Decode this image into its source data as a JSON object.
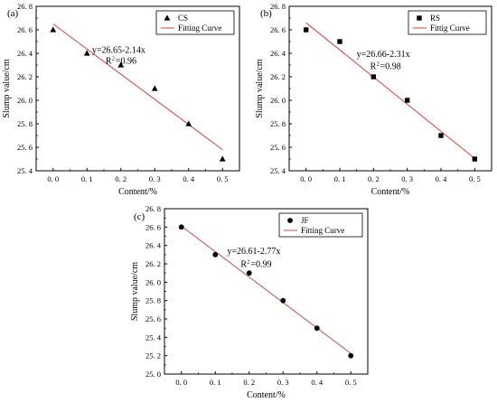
{
  "chart_data": [
    {
      "panel": "(a)",
      "type": "scatter",
      "xlabel": "Content/%",
      "ylabel": "Slump value/cm",
      "xlim": [
        -0.05,
        0.55
      ],
      "ylim": [
        25.4,
        26.8
      ],
      "xticks": [
        "0. 0",
        "0. 1",
        "0. 2",
        "0. 3",
        "0. 4",
        "0. 5"
      ],
      "yticks": [
        "25. 4",
        "25. 6",
        "25. 8",
        "26. 0",
        "26. 2",
        "26. 4",
        "26. 6",
        "26. 8"
      ],
      "marker": "triangle",
      "series": [
        {
          "name": "CS",
          "x": [
            0,
            0.1,
            0.2,
            0.3,
            0.4,
            0.5
          ],
          "y": [
            26.6,
            26.4,
            26.3,
            26.1,
            25.8,
            25.5
          ]
        }
      ],
      "fit": {
        "name": "Fitting Curve",
        "intercept": 26.65,
        "slope": -2.14,
        "color": "#e03c3c"
      },
      "annotation": {
        "equation": "y=26.65-2.14x",
        "r2_prefix": "R",
        "r2_sup": "2",
        "r2_value": "=0.96"
      }
    },
    {
      "panel": "(b)",
      "type": "scatter",
      "xlabel": "Content/%",
      "ylabel": "Slump value/cm",
      "xlim": [
        -0.05,
        0.55
      ],
      "ylim": [
        25.4,
        26.8
      ],
      "xticks": [
        "0. 0",
        "0. 1",
        "0. 2",
        "0. 3",
        "0. 4",
        "0. 5"
      ],
      "yticks": [
        "25. 4",
        "25. 6",
        "25. 8",
        "26. 0",
        "26. 2",
        "26. 4",
        "26. 6",
        "26. 8"
      ],
      "marker": "square",
      "series": [
        {
          "name": "RS",
          "x": [
            0,
            0.1,
            0.2,
            0.3,
            0.4,
            0.5
          ],
          "y": [
            26.6,
            26.5,
            26.2,
            26.0,
            25.7,
            25.5
          ]
        }
      ],
      "fit": {
        "name": "Fittig Curve",
        "intercept": 26.66,
        "slope": -2.31,
        "color": "#e03c3c"
      },
      "annotation": {
        "equation": "y=26.66-2.31x",
        "r2_prefix": "R",
        "r2_sup": "2",
        "r2_value": "=0.98"
      }
    },
    {
      "panel": "(c)",
      "type": "scatter",
      "xlabel": "Content/%",
      "ylabel": "Slump value/cm",
      "xlim": [
        -0.05,
        0.55
      ],
      "ylim": [
        25.0,
        26.8
      ],
      "xticks": [
        "0. 0",
        "0. 1",
        "0. 2",
        "0. 3",
        "0. 4",
        "0. 5"
      ],
      "yticks": [
        "25. 0",
        "25. 2",
        "25. 4",
        "25. 6",
        "25. 8",
        "26. 0",
        "26. 2",
        "26. 4",
        "26. 6",
        "26. 8"
      ],
      "marker": "circle",
      "series": [
        {
          "name": "JF",
          "x": [
            0,
            0.1,
            0.2,
            0.3,
            0.4,
            0.5
          ],
          "y": [
            26.6,
            26.3,
            26.1,
            25.8,
            25.5,
            25.2
          ]
        }
      ],
      "fit": {
        "name": "Fitting Curve",
        "intercept": 26.61,
        "slope": -2.77,
        "color": "#c0504d"
      },
      "annotation": {
        "equation": "y=26.61-2.77x",
        "r2_prefix": "R",
        "r2_sup": "2",
        "r2_value": "=0.99"
      }
    }
  ]
}
